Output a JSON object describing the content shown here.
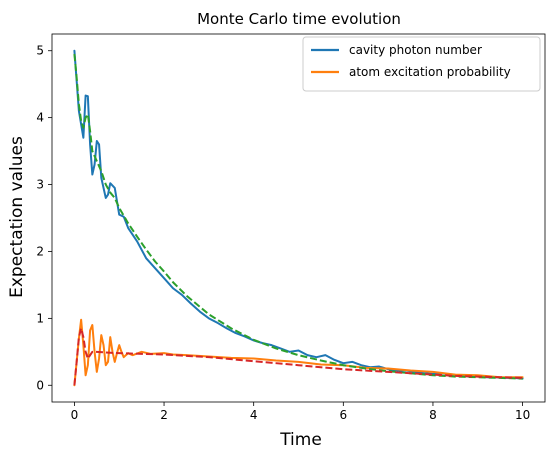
{
  "chart_data": {
    "type": "line",
    "title": "Monte Carlo time evolution",
    "xlabel": "Time",
    "ylabel": "Expectation values",
    "xlim": [
      -0.5,
      10.5
    ],
    "ylim": [
      -0.25,
      5.25
    ],
    "x_ticks": [
      0,
      2,
      4,
      6,
      8,
      10
    ],
    "y_ticks": [
      0,
      1,
      2,
      3,
      4,
      5
    ],
    "grid": false,
    "legend_position": "top-right",
    "series": [
      {
        "name": "cavity photon number",
        "color": "#1f77b4",
        "style": "solid",
        "x": [
          0,
          0.1,
          0.2,
          0.25,
          0.3,
          0.35,
          0.4,
          0.45,
          0.5,
          0.55,
          0.6,
          0.7,
          0.75,
          0.8,
          0.9,
          1.0,
          1.1,
          1.2,
          1.4,
          1.6,
          1.8,
          2.0,
          2.2,
          2.4,
          2.6,
          2.8,
          3.0,
          3.2,
          3.4,
          3.6,
          3.8,
          4.0,
          4.2,
          4.4,
          4.6,
          4.8,
          5.0,
          5.2,
          5.4,
          5.6,
          5.8,
          6.0,
          6.2,
          6.4,
          6.6,
          6.8,
          7.0,
          7.2,
          7.4,
          7.6,
          7.8,
          8.0,
          8.2,
          8.4,
          8.6,
          8.8,
          9.0,
          9.2,
          9.4,
          9.6,
          9.8,
          10.0
        ],
        "values": [
          5.0,
          4.1,
          3.7,
          4.33,
          4.32,
          3.6,
          3.15,
          3.3,
          3.65,
          3.6,
          3.1,
          2.8,
          2.85,
          3.02,
          2.95,
          2.55,
          2.52,
          2.35,
          2.15,
          1.9,
          1.75,
          1.6,
          1.45,
          1.35,
          1.22,
          1.1,
          1.0,
          0.93,
          0.85,
          0.78,
          0.73,
          0.67,
          0.63,
          0.6,
          0.55,
          0.5,
          0.52,
          0.45,
          0.42,
          0.45,
          0.38,
          0.33,
          0.35,
          0.3,
          0.27,
          0.28,
          0.24,
          0.22,
          0.22,
          0.2,
          0.18,
          0.17,
          0.18,
          0.16,
          0.15,
          0.13,
          0.14,
          0.12,
          0.12,
          0.11,
          0.11,
          0.1
        ]
      },
      {
        "name": "atom excitation probability",
        "color": "#ff7f0e",
        "style": "solid",
        "x": [
          0,
          0.1,
          0.15,
          0.2,
          0.25,
          0.3,
          0.35,
          0.4,
          0.45,
          0.5,
          0.55,
          0.6,
          0.65,
          0.7,
          0.75,
          0.8,
          0.85,
          0.9,
          0.95,
          1.0,
          1.05,
          1.1,
          1.2,
          1.3,
          1.5,
          1.7,
          2.0,
          2.2,
          2.5,
          3.0,
          3.5,
          4.0,
          4.5,
          5.0,
          5.5,
          6.0,
          6.5,
          7.0,
          7.5,
          8.0,
          8.5,
          9.0,
          9.5,
          10.0
        ],
        "values": [
          0.0,
          0.7,
          0.98,
          0.6,
          0.15,
          0.3,
          0.82,
          0.9,
          0.5,
          0.2,
          0.4,
          0.75,
          0.6,
          0.3,
          0.35,
          0.72,
          0.5,
          0.35,
          0.48,
          0.6,
          0.5,
          0.42,
          0.48,
          0.45,
          0.5,
          0.47,
          0.48,
          0.46,
          0.45,
          0.43,
          0.41,
          0.4,
          0.37,
          0.35,
          0.31,
          0.3,
          0.26,
          0.25,
          0.22,
          0.2,
          0.16,
          0.15,
          0.12,
          0.12
        ]
      },
      {
        "color": "#2ca02c",
        "style": "dashed",
        "x": [
          0,
          0.05,
          0.1,
          0.15,
          0.2,
          0.25,
          0.3,
          0.35,
          0.4,
          0.5,
          0.6,
          0.7,
          0.8,
          0.9,
          1.0,
          1.2,
          1.4,
          1.6,
          1.8,
          2.0,
          2.2,
          2.5,
          3.0,
          3.5,
          4.0,
          4.5,
          5.0,
          5.5,
          6.0,
          6.5,
          7.0,
          7.5,
          8.0,
          8.5,
          9.0,
          9.5,
          10.0
        ],
        "values": [
          4.95,
          4.6,
          4.2,
          3.95,
          3.85,
          4.0,
          4.05,
          3.8,
          3.5,
          3.35,
          3.2,
          3.0,
          2.88,
          2.8,
          2.65,
          2.42,
          2.22,
          2.03,
          1.85,
          1.7,
          1.54,
          1.34,
          1.06,
          0.85,
          0.68,
          0.55,
          0.45,
          0.37,
          0.3,
          0.25,
          0.21,
          0.18,
          0.15,
          0.13,
          0.12,
          0.11,
          0.1
        ]
      },
      {
        "color": "#d62728",
        "style": "dashed",
        "x": [
          0,
          0.05,
          0.1,
          0.15,
          0.2,
          0.25,
          0.3,
          0.35,
          0.4,
          0.5,
          0.7,
          1.0,
          1.5,
          2.0,
          2.5,
          3.0,
          3.5,
          4.0,
          4.5,
          5.0,
          5.5,
          6.0,
          6.5,
          7.0,
          7.5,
          8.0,
          8.5,
          9.0,
          9.5,
          10.0
        ],
        "values": [
          0.0,
          0.35,
          0.72,
          0.85,
          0.72,
          0.5,
          0.4,
          0.45,
          0.5,
          0.5,
          0.49,
          0.48,
          0.47,
          0.46,
          0.44,
          0.42,
          0.39,
          0.36,
          0.33,
          0.3,
          0.27,
          0.24,
          0.22,
          0.2,
          0.18,
          0.16,
          0.14,
          0.13,
          0.12,
          0.11
        ]
      }
    ]
  }
}
